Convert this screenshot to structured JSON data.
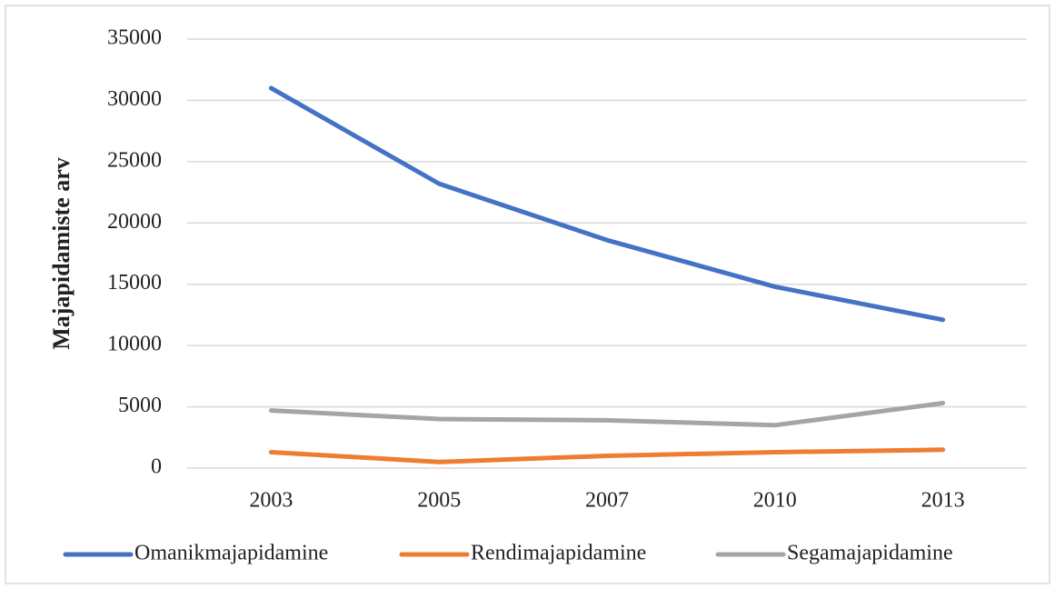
{
  "chart_data": {
    "type": "line",
    "y_label": "Majapidamiste arv",
    "categories": [
      "2003",
      "2005",
      "2007",
      "2010",
      "2013"
    ],
    "series": [
      {
        "name": "Omanikmajapidamine",
        "color": "#4472c4",
        "values": [
          31000,
          23200,
          18600,
          14800,
          12100
        ]
      },
      {
        "name": "Rendimajapidamine",
        "color": "#ed7d31",
        "values": [
          1300,
          500,
          1000,
          1300,
          1500
        ]
      },
      {
        "name": "Segamajapidamine",
        "color": "#a5a5a5",
        "values": [
          4700,
          4000,
          3900,
          3500,
          5300
        ]
      }
    ],
    "ylim": [
      0,
      35000
    ],
    "yticks": [
      0,
      5000,
      10000,
      15000,
      20000,
      25000,
      30000,
      35000
    ],
    "grid": true,
    "legend": "bottom"
  }
}
